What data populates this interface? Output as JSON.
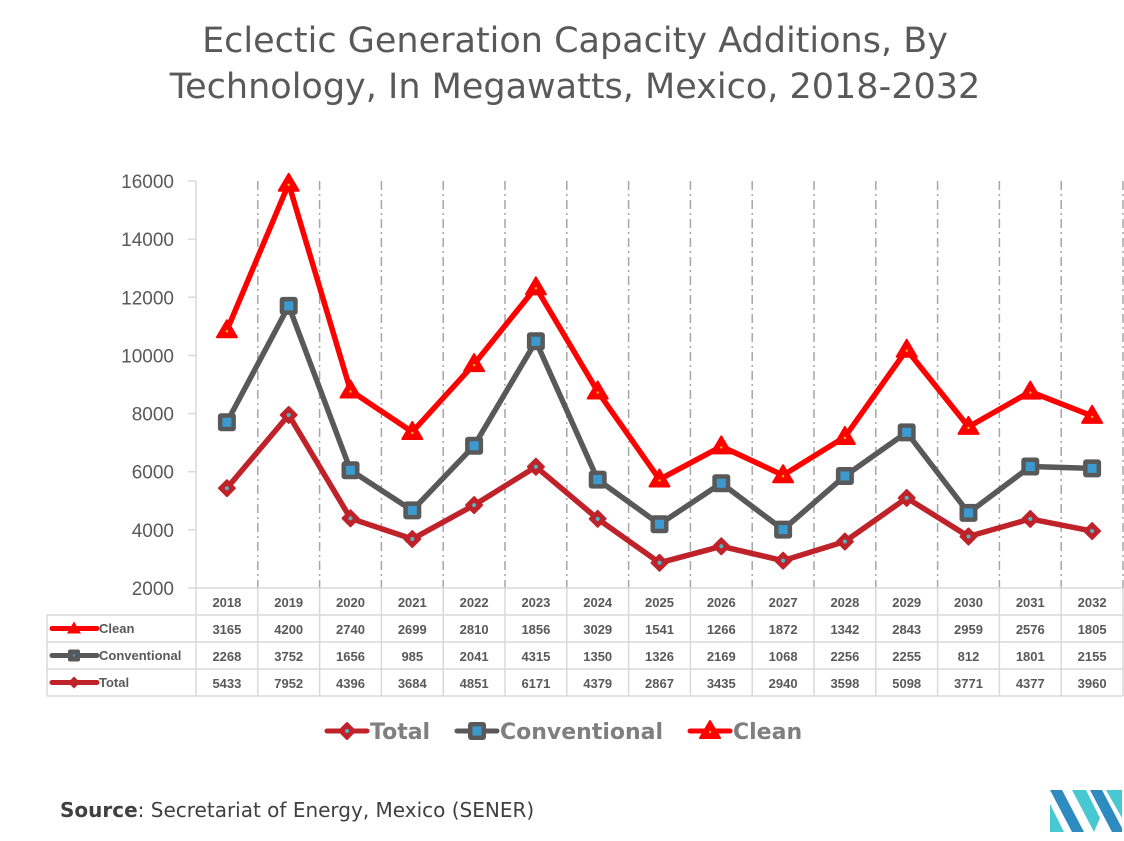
{
  "title": "Eclectic Generation Capacity Additions, By Technology, In Megawatts, Mexico, 2018-2032",
  "source": {
    "label": "Source",
    "text": ": Secretariat of Energy, Mexico (SENER)"
  },
  "logo": {
    "icon": "mordor-intelligence-logo-icon",
    "colors": [
      "#2e8bc0",
      "#48c9d1"
    ]
  },
  "chart_data": {
    "type": "line",
    "stacked": true,
    "title": "Eclectic Generation Capacity Additions, By Technology, In Megawatts, Mexico, 2018-2032",
    "xlabel": "",
    "ylabel": "",
    "ylim": [
      2000,
      16000
    ],
    "yticks": [
      2000,
      4000,
      6000,
      8000,
      10000,
      12000,
      14000,
      16000
    ],
    "grid": "vertical dash-dot",
    "categories": [
      "2018",
      "2019",
      "2020",
      "2021",
      "2022",
      "2023",
      "2024",
      "2025",
      "2026",
      "2027",
      "2028",
      "2029",
      "2030",
      "2031",
      "2032"
    ],
    "series": [
      {
        "name": "Clean",
        "color": "#ff0000",
        "marker": "triangle",
        "values": [
          3165,
          4200,
          2740,
          2699,
          2810,
          1856,
          3029,
          1541,
          1266,
          1872,
          1342,
          2843,
          2959,
          2576,
          1805
        ]
      },
      {
        "name": "Conventional",
        "color": "#595959",
        "marker": "square",
        "marker_fill": "#3b9bd1",
        "values": [
          2268,
          3752,
          1656,
          985,
          2041,
          4315,
          1350,
          1326,
          2169,
          1068,
          2256,
          2255,
          812,
          1801,
          2155
        ]
      },
      {
        "name": "Total",
        "color": "#c0222a",
        "marker": "diamond",
        "marker_fill": "#4db8c8",
        "values": [
          5433,
          7952,
          4396,
          3684,
          4851,
          6171,
          4379,
          2867,
          3435,
          2940,
          3598,
          5098,
          3771,
          4377,
          3960
        ]
      }
    ],
    "stack_order": [
      "Total",
      "Conventional",
      "Clean"
    ],
    "data_table": true,
    "legend": {
      "position": "bottom",
      "order": [
        "Total",
        "Conventional",
        "Clean"
      ]
    }
  }
}
